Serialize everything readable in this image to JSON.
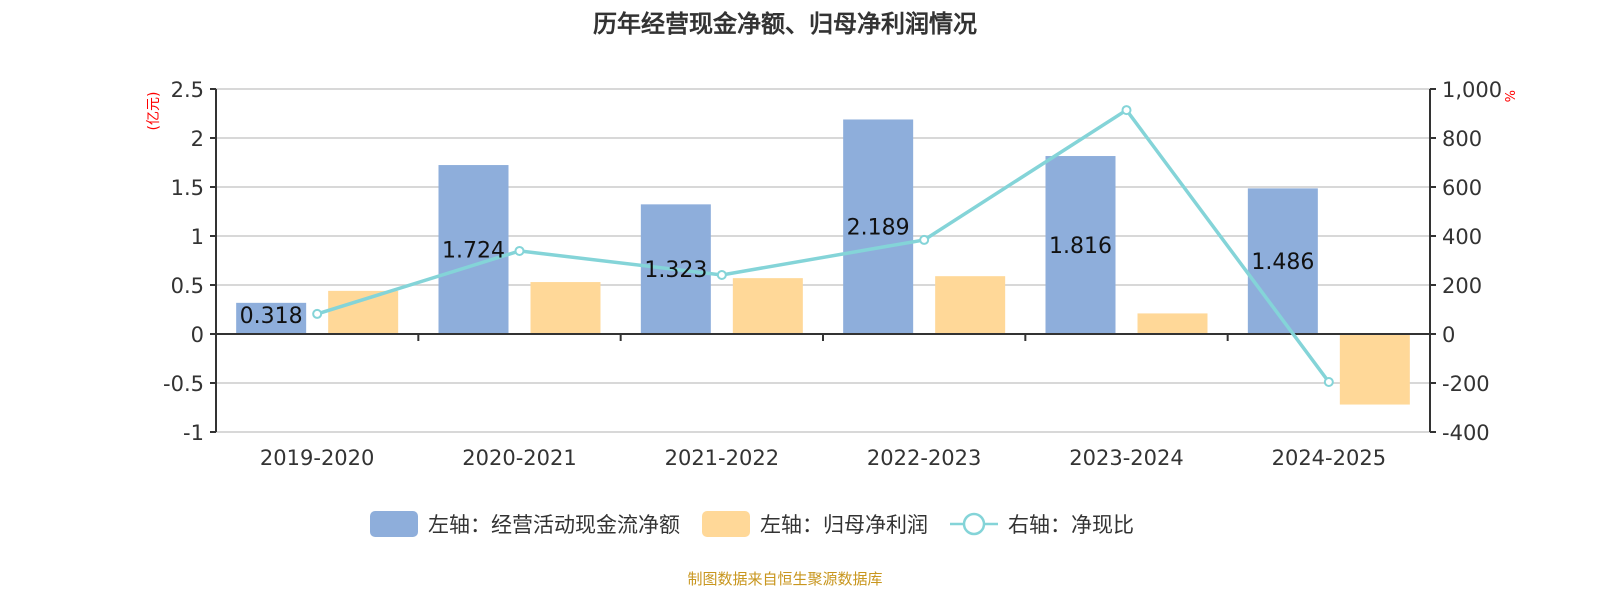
{
  "chart_data": {
    "type": "bar",
    "title": "历年经营现金净额、归母净利润情况",
    "categories": [
      "2019-2020",
      "2020-2021",
      "2021-2022",
      "2022-2023",
      "2023-2024",
      "2024-2025"
    ],
    "series": [
      {
        "name": "左轴：经营活动现金流净额",
        "axis": "left",
        "kind": "bar",
        "color": "#8eaedb",
        "values": [
          0.318,
          1.724,
          1.323,
          2.189,
          1.816,
          1.486
        ],
        "labels": [
          "0.318",
          "1.724",
          "1.323",
          "2.189",
          "1.816",
          "1.486"
        ]
      },
      {
        "name": "左轴：归母净利润",
        "axis": "left",
        "kind": "bar",
        "color": "#ffd898",
        "values": [
          0.44,
          0.53,
          0.57,
          0.59,
          0.21,
          -0.72
        ]
      },
      {
        "name": "右轴：净现比",
        "axis": "right",
        "kind": "line",
        "color": "#84d4d8",
        "values": [
          82,
          339,
          241,
          384,
          914,
          -196
        ]
      }
    ],
    "left_axis": {
      "unit": "(亿元)",
      "ylim": [
        -1,
        2.5
      ],
      "ticks": [
        "-1",
        "-0.5",
        "0",
        "0.5",
        "1",
        "1.5",
        "2",
        "2.5"
      ]
    },
    "right_axis": {
      "unit": "%",
      "ylim": [
        -400,
        1000
      ],
      "ticks": [
        "-400",
        "-200",
        "0",
        "200",
        "400",
        "600",
        "800",
        "1,000"
      ]
    },
    "grid": true,
    "legend_position": "bottom"
  },
  "source": "制图数据来自恒生聚源数据库"
}
